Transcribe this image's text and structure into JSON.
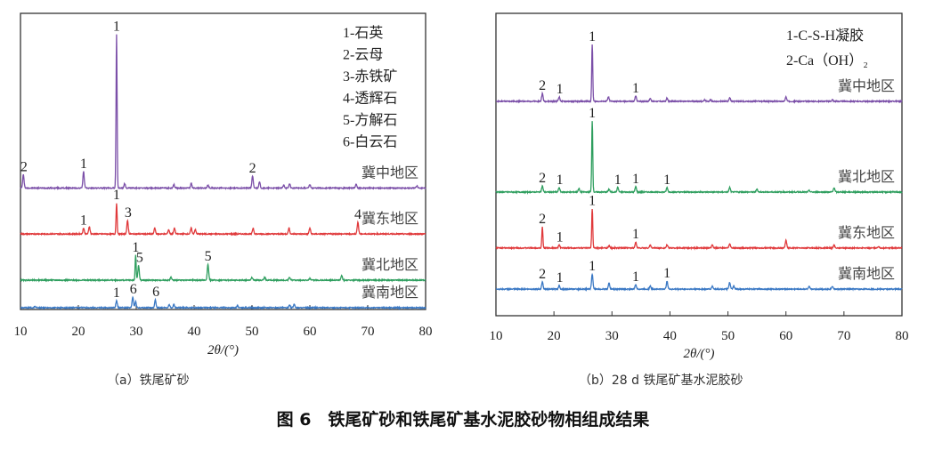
{
  "figure_title": "图 6　铁尾矿砂和铁尾矿基水泥胶砂物相组成结果",
  "chart_data": [
    {
      "type": "line",
      "caption": "（a）铁尾矿砂",
      "xlabel": "2θ/(°)",
      "ylabel": "",
      "xlim": [
        10,
        80
      ],
      "ylim": [
        0,
        100
      ],
      "xticks": [
        "10",
        "20",
        "30",
        "40",
        "50",
        "60",
        "70",
        "80"
      ],
      "grid": false,
      "legend_position": "top-right",
      "legend": [
        "1-石英",
        "2-云母",
        "3-赤铁矿",
        "4-透辉石",
        "5-方解石",
        "6-白云石"
      ],
      "series": [
        {
          "name": "冀中地区",
          "color": "#7b4fa8",
          "offset": 41,
          "peaks": [
            [
              10.5,
              4.5
            ],
            [
              20.9,
              5.5
            ],
            [
              26.6,
              52
            ],
            [
              28,
              1.5
            ],
            [
              36.5,
              1.2
            ],
            [
              39.5,
              1.5
            ],
            [
              42.4,
              1
            ],
            [
              50.1,
              4
            ],
            [
              51.3,
              2
            ],
            [
              55.5,
              1
            ],
            [
              56.5,
              1.5
            ],
            [
              60,
              1.2
            ],
            [
              68,
              1.2
            ],
            [
              78.5,
              0.8
            ]
          ],
          "labels": [
            [
              "2",
              10.6
            ],
            [
              "1",
              20.9
            ],
            [
              "1",
              26.6
            ],
            [
              "2",
              50.1
            ]
          ]
        },
        {
          "name": "冀东地区",
          "color": "#e0393b",
          "offset": 25.5,
          "peaks": [
            [
              20.9,
              2
            ],
            [
              21.9,
              2.5
            ],
            [
              26.6,
              10.5
            ],
            [
              28.5,
              4.5
            ],
            [
              33.2,
              2
            ],
            [
              35.6,
              1.5
            ],
            [
              36.6,
              2
            ],
            [
              39.5,
              2
            ],
            [
              40.2,
              1.5
            ],
            [
              50.2,
              2
            ],
            [
              56.4,
              2
            ],
            [
              60,
              2
            ],
            [
              68.3,
              4
            ]
          ],
          "labels": [
            [
              "1",
              20.9
            ],
            [
              "1",
              26.6
            ],
            [
              "3",
              28.6
            ],
            [
              "4",
              68.3
            ]
          ]
        },
        {
          "name": "冀北地区",
          "color": "#2e9e5e",
          "offset": 9.9,
          "peaks": [
            [
              29.9,
              8.4
            ],
            [
              30.4,
              5
            ],
            [
              36,
              1
            ],
            [
              42.4,
              5.4
            ],
            [
              50,
              1
            ],
            [
              52.2,
              1
            ],
            [
              56.5,
              1
            ],
            [
              60,
              0.5
            ],
            [
              65.5,
              1.5
            ]
          ],
          "labels": [
            [
              "1",
              29.9
            ],
            [
              "5",
              30.6
            ],
            [
              "5",
              42.4
            ]
          ]
        },
        {
          "name": "冀南地区",
          "color": "#3a78c4",
          "offset": 0.6,
          "peaks": [
            [
              12.5,
              0.5
            ],
            [
              26.6,
              2.4
            ],
            [
              29.4,
              3.6
            ],
            [
              29.9,
              2
            ],
            [
              33.3,
              2.7
            ],
            [
              35.7,
              1
            ],
            [
              36.5,
              1
            ],
            [
              47.5,
              0.6
            ],
            [
              56.5,
              1
            ],
            [
              57.3,
              1.2
            ]
          ],
          "labels": [
            [
              "1",
              26.6
            ],
            [
              "6",
              29.5
            ],
            [
              "6",
              33.4
            ]
          ]
        }
      ]
    },
    {
      "type": "line",
      "caption": "（b）28 d 铁尾矿基水泥胶砂",
      "xlabel": "2θ/(°)",
      "ylabel": "",
      "xlim": [
        10,
        80
      ],
      "ylim": [
        0,
        100
      ],
      "xticks": [
        "10",
        "20",
        "30",
        "40",
        "50",
        "60",
        "70",
        "80"
      ],
      "grid": false,
      "legend_position": "top-right",
      "legend": [
        "1-C-S-H凝胶",
        "2-Ca（OH）₂"
      ],
      "series": [
        {
          "name": "冀中地区",
          "color": "#7b4fa8",
          "offset": 70.9,
          "peaks": [
            [
              18,
              2.6
            ],
            [
              20.9,
              1.5
            ],
            [
              26.6,
              18.8
            ],
            [
              29.4,
              1.5
            ],
            [
              34.1,
              1.8
            ],
            [
              36.6,
              1
            ],
            [
              39.5,
              1
            ],
            [
              46,
              0.5
            ],
            [
              47,
              0.5
            ],
            [
              50.3,
              1.2
            ],
            [
              60,
              1.5
            ],
            [
              68,
              0.6
            ]
          ],
          "labels": [
            [
              "2",
              18
            ],
            [
              "1",
              21
            ],
            [
              "1",
              26.6
            ],
            [
              "1",
              34.1
            ]
          ]
        },
        {
          "name": "冀北地区",
          "color": "#2e9e5e",
          "offset": 40.9,
          "peaks": [
            [
              18,
              2
            ],
            [
              20.9,
              1.5
            ],
            [
              24.3,
              1.2
            ],
            [
              26.6,
              23.5
            ],
            [
              29.5,
              1
            ],
            [
              31,
              1.5
            ],
            [
              34.1,
              1.8
            ],
            [
              39.5,
              1.5
            ],
            [
              50.3,
              1.5
            ],
            [
              55,
              1
            ],
            [
              64,
              0.5
            ],
            [
              68.3,
              1.5
            ]
          ],
          "labels": [
            [
              "2",
              18
            ],
            [
              "1",
              21
            ],
            [
              "1",
              26.6
            ],
            [
              "1",
              31
            ],
            [
              "1",
              34.1
            ],
            [
              "1",
              39.5
            ]
          ]
        },
        {
          "name": "冀东地区",
          "color": "#e0393b",
          "offset": 22.4,
          "peaks": [
            [
              18,
              7
            ],
            [
              20.9,
              1
            ],
            [
              26.6,
              13
            ],
            [
              29.5,
              0.7
            ],
            [
              34.1,
              2
            ],
            [
              36.6,
              1
            ],
            [
              39.5,
              1
            ],
            [
              47.3,
              1
            ],
            [
              50.3,
              1.5
            ],
            [
              60,
              2.6
            ],
            [
              68.3,
              1
            ],
            [
              76,
              0.5
            ]
          ],
          "labels": [
            [
              "2",
              18
            ],
            [
              "1",
              21
            ],
            [
              "1",
              26.6
            ],
            [
              "1",
              34.1
            ]
          ]
        },
        {
          "name": "冀南地区",
          "color": "#3a78c4",
          "offset": 8.8,
          "peaks": [
            [
              18,
              2.4
            ],
            [
              20.9,
              1.2
            ],
            [
              26.6,
              5
            ],
            [
              29.5,
              2
            ],
            [
              34.1,
              1.5
            ],
            [
              36.6,
              1
            ],
            [
              39.5,
              2.7
            ],
            [
              47.3,
              1
            ],
            [
              50.3,
              2.2
            ],
            [
              51,
              1
            ],
            [
              64,
              0.8
            ],
            [
              68,
              1
            ]
          ],
          "labels": [
            [
              "2",
              18
            ],
            [
              "1",
              21
            ],
            [
              "1",
              26.6
            ],
            [
              "1",
              34.1
            ],
            [
              "1",
              39.5
            ]
          ]
        }
      ]
    }
  ]
}
